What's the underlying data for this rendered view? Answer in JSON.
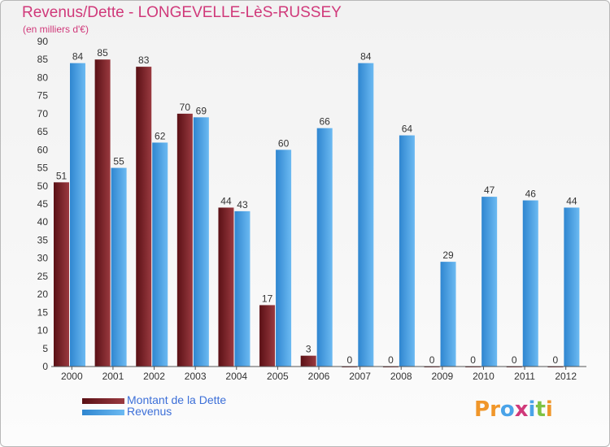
{
  "title": "Revenus/Dette - LONGEVELLE-LèS-RUSSEY",
  "subtitle": "(en milliers d'€)",
  "brand": {
    "name": "Proxiti"
  },
  "colors": {
    "dette": "#7a1f25",
    "revenus": "#4aa3e8",
    "title": "#d0397a",
    "legend_text": "#3c6fd8"
  },
  "chart_data": {
    "type": "bar",
    "title": "Revenus/Dette - LONGEVELLE-LèS-RUSSEY",
    "subtitle": "(en milliers d'€)",
    "xlabel": "",
    "ylabel": "",
    "ylim": [
      0,
      90
    ],
    "ytick_step": 5,
    "grid": false,
    "legend_position": "bottom-left",
    "categories": [
      "2000",
      "2001",
      "2002",
      "2003",
      "2004",
      "2005",
      "2006",
      "2007",
      "2008",
      "2009",
      "2010",
      "2011",
      "2012"
    ],
    "series": [
      {
        "name": "Montant de la Dette",
        "color": "#7a1f25",
        "values": [
          51,
          85,
          83,
          70,
          44,
          17,
          3,
          0,
          0,
          0,
          0,
          0,
          0
        ]
      },
      {
        "name": "Revenus",
        "color": "#4aa3e8",
        "values": [
          84,
          55,
          62,
          69,
          43,
          60,
          66,
          84,
          64,
          29,
          47,
          46,
          44
        ]
      }
    ]
  }
}
